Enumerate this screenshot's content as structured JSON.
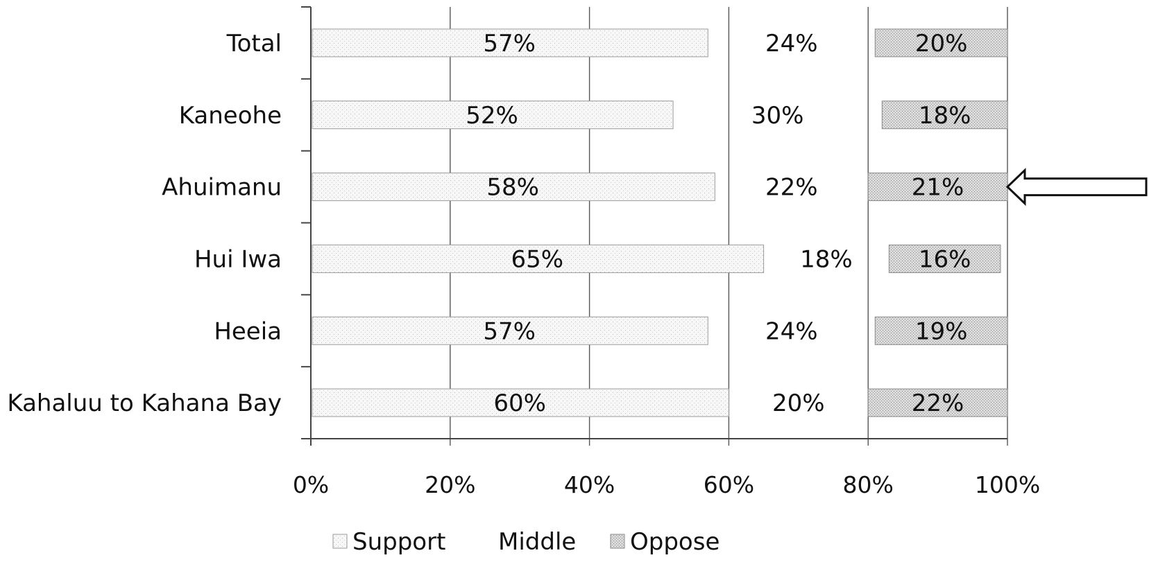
{
  "chart_data": {
    "type": "bar",
    "orientation": "horizontal",
    "stacked": true,
    "percent_scale": true,
    "categories": [
      "Total",
      "Kaneohe",
      "Ahuimanu",
      "Hui Iwa",
      "Heeia",
      "Kahaluu to Kahana Bay"
    ],
    "series": [
      {
        "name": "Support",
        "values": [
          57,
          52,
          58,
          65,
          57,
          60
        ],
        "labels": [
          "57%",
          "52%",
          "58%",
          "65%",
          "57%",
          "60%"
        ],
        "color": "#f4f4f4"
      },
      {
        "name": "Middle",
        "values": [
          24,
          30,
          22,
          18,
          24,
          20
        ],
        "labels": [
          "24%",
          "30%",
          "22%",
          "18%",
          "24%",
          "20%"
        ],
        "color": "#ffffff"
      },
      {
        "name": "Oppose",
        "values": [
          20,
          18,
          21,
          16,
          19,
          22
        ],
        "labels": [
          "20%",
          "18%",
          "21%",
          "16%",
          "19%",
          "22%"
        ],
        "color": "#d6d6d6"
      }
    ],
    "xlim": [
      0,
      100
    ],
    "xticks": [
      0,
      20,
      40,
      60,
      80,
      100
    ],
    "xtick_labels": [
      "0%",
      "20%",
      "40%",
      "60%",
      "80%",
      "100%"
    ],
    "grid": "vertical",
    "legend": "bottom",
    "annotation": {
      "type": "arrow",
      "points_to": "Ahuimanu"
    }
  }
}
